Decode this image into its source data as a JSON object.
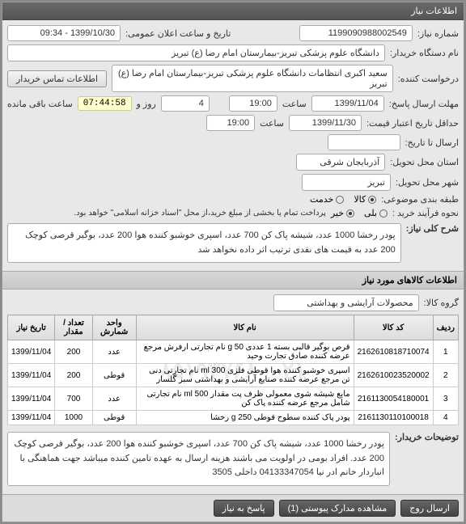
{
  "header": {
    "title": "اطلاعات نیاز"
  },
  "form": {
    "need_no_label": "شماره نیاز:",
    "need_no": "1199090988002549",
    "announce_label": "تاریخ و ساعت اعلان عمومی:",
    "announce_value": "1399/10/30 - 09:34",
    "buyer_org_label": "نام دستگاه خریدار:",
    "buyer_org": "دانشگاه علوم پزشکی تبریز-بیمارستان امام رضا (ع) تبریز",
    "request_source_label": "درخواست کننده:",
    "request_source": "سعید اکبری انتظامات دانشگاه علوم پزشکی تبریز-بیمارستان امام رضا (ع) تبریز",
    "contact_btn": "اطلاعات تماس خریدار",
    "deadline_reply_label": "مهلت ارسال پاسخ:",
    "deadline_reply_date": "1399/11/04",
    "time_label": "ساعت",
    "deadline_reply_time": "19:00",
    "days_label": "روز و",
    "days_value": "4",
    "remaining_label": "ساعت باقی مانده",
    "remaining_time": "07:44:58",
    "price_validity_label": "حداقل تاریخ اعتبار قیمت:",
    "price_validity_date": "1399/11/30",
    "price_validity_time": "19:00",
    "ship_to_label": "ارسال تا تاریخ:",
    "delivery_province_label": "استان محل تحویل:",
    "delivery_province": "آذربایجان شرقی",
    "delivery_city_label": "شهر محل تحویل:",
    "delivery_city": "تبریز",
    "budget_row_label": "طبقه بندی موضوعی:",
    "budget_goods": "کالا",
    "budget_service": "خدمت",
    "process_type_label": "نحوه فرآیند خرید :",
    "process_note": "پرداخت تمام یا بخشی از مبلغ خرید،از محل \"اسناد خزانه اسلامی\" خواهد بود.",
    "yes": "بلی",
    "no": "خیر"
  },
  "summary": {
    "label": "شرح کلی نیاز:",
    "text": "پودر رخشا 1000 عدد، شیشه پاک کن 700 عدد، اسپری خوشبو کننده هوا 200 عدد، بوگیر قرصی کوچک 200 عدد به قیمت های نقدی ترتیب اثر داده نخواهد شد"
  },
  "items_section": {
    "title": "اطلاعات کالاهای مورد نیاز",
    "group_label": "گروه کالا:",
    "group_value": "محصولات آرایشی و بهداشتی"
  },
  "table": {
    "columns": [
      "ردیف",
      "کد کالا",
      "نام کالا",
      "واحد شمارش",
      "تعداد / مقدار",
      "تاریخ نیاز"
    ],
    "rows": [
      [
        "1",
        "2162610818710074",
        "قرص بوگیر قالبی بسته 1 عددی 50 g نام تجارتی ارفرش مرجع عرضه کننده صادق تجارت وحید",
        "عدد",
        "200",
        "1399/11/04"
      ],
      [
        "2",
        "2162610023520002",
        "اسپری خوشبو کننده هوا قوطی فلزی ml 300 نام تجارتی دنی تن مرجع عرضه کننده صنایع آرایشی و بهداشتی سبز گلسار",
        "قوطی",
        "200",
        "1399/11/04"
      ],
      [
        "3",
        "2161130054180001",
        "مایع شیشه شوی معمولی ظرف پت مقدار ml 500 نام تجارتی شامل مرجع عرضه کننده پاک کن",
        "عدد",
        "700",
        "1399/11/04"
      ],
      [
        "4",
        "2161130110100018",
        "پودر پاک کننده سطوح قوطی g 250 رخشا",
        "قوطی",
        "1000",
        "1399/11/04"
      ]
    ],
    "watermark": "۰۲۱–۸۵۱۹۳۷۶۸"
  },
  "notes": {
    "label": "توضیحات خریدار:",
    "text": "پودر رخشا 1000 عدد، شیشه پاک کن 700 عدد، اسپری خوشبو کننده هوا 200 عدد، بوگیر قرصی کوچک 200 عدد. افراد بومی در اولویت می باشند هزینه ارسال به عهده تامین کننده میباشد جهت هماهنگی با انباردار خانم ادر نیا 04133347054 داخلی 3505"
  },
  "footer": {
    "send": "ارسال روج",
    "attachments": "مشاهده مدارک پیوستی (1)",
    "reply": "پاسخ به نیاز"
  }
}
